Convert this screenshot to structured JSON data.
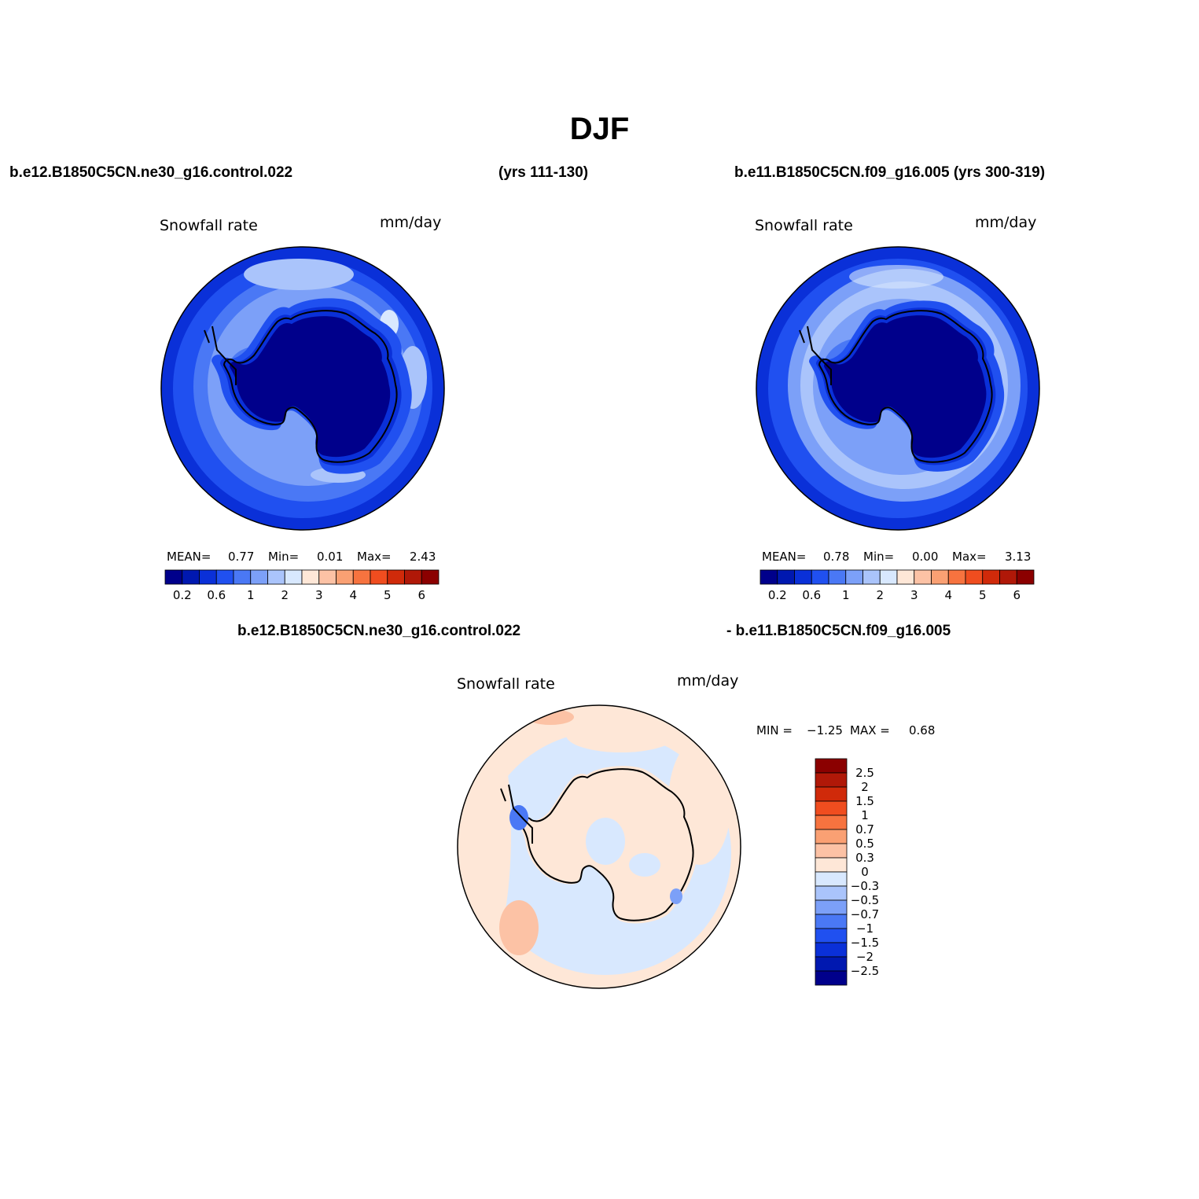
{
  "title": "DJF",
  "header": {
    "case1": "b.e12.B1850C5CN.ne30_g16.control.022",
    "years1": "(yrs 111-130)",
    "case2": "b.e11.B1850C5CN.f09_g16.005 (yrs 300-319)",
    "diff_case1": "b.e12.B1850C5CN.ne30_g16.control.022",
    "diff_case2": "- b.e11.B1850C5CN.f09_g16.005"
  },
  "panels": [
    {
      "variable": "Snowfall rate",
      "units": "mm/day",
      "stats": {
        "mean_label": "MEAN=",
        "mean": "0.77",
        "min_label": "Min=",
        "min": "0.01",
        "max_label": "Max=",
        "max": "2.43"
      }
    },
    {
      "variable": "Snowfall rate",
      "units": "mm/day",
      "stats": {
        "mean_label": "MEAN=",
        "mean": "0.78",
        "min_label": "Min=",
        "min": "0.00",
        "max_label": "Max=",
        "max": "3.13"
      }
    }
  ],
  "diff_panel": {
    "variable": "Snowfall rate",
    "units": "mm/day",
    "stats": {
      "min_label": "MIN =",
      "min": "−1.25",
      "max_label": "MAX =",
      "max": "0.68"
    }
  },
  "colorbar_main": {
    "colors": [
      "#00008b",
      "#0018b0",
      "#0a30d8",
      "#2050f0",
      "#4a78f5",
      "#7ca0f8",
      "#aac4fb",
      "#d8e8fe",
      "#fee7d7",
      "#fcc2a5",
      "#faa073",
      "#f7733f",
      "#f04d1f",
      "#d02a0a",
      "#b01808",
      "#8b0000"
    ],
    "tick_labels": [
      "0.2",
      "0.6",
      "1",
      "2",
      "3",
      "4",
      "5",
      "6"
    ]
  },
  "colorbar_diff": {
    "colors": [
      "#8b0000",
      "#b01808",
      "#d02a0a",
      "#f04d1f",
      "#f7733f",
      "#faa073",
      "#fcc2a5",
      "#fee7d7",
      "#d8e8fe",
      "#aac4fb",
      "#7ca0f8",
      "#4a78f5",
      "#2050f0",
      "#0a30d8",
      "#0018b0",
      "#00008b"
    ],
    "tick_labels": [
      "2.5",
      "2",
      "1.5",
      "1",
      "0.7",
      "0.5",
      "0.3",
      "0",
      "−0.3",
      "−0.5",
      "−0.7",
      "−1",
      "−1.5",
      "−2",
      "−2.5"
    ]
  }
}
